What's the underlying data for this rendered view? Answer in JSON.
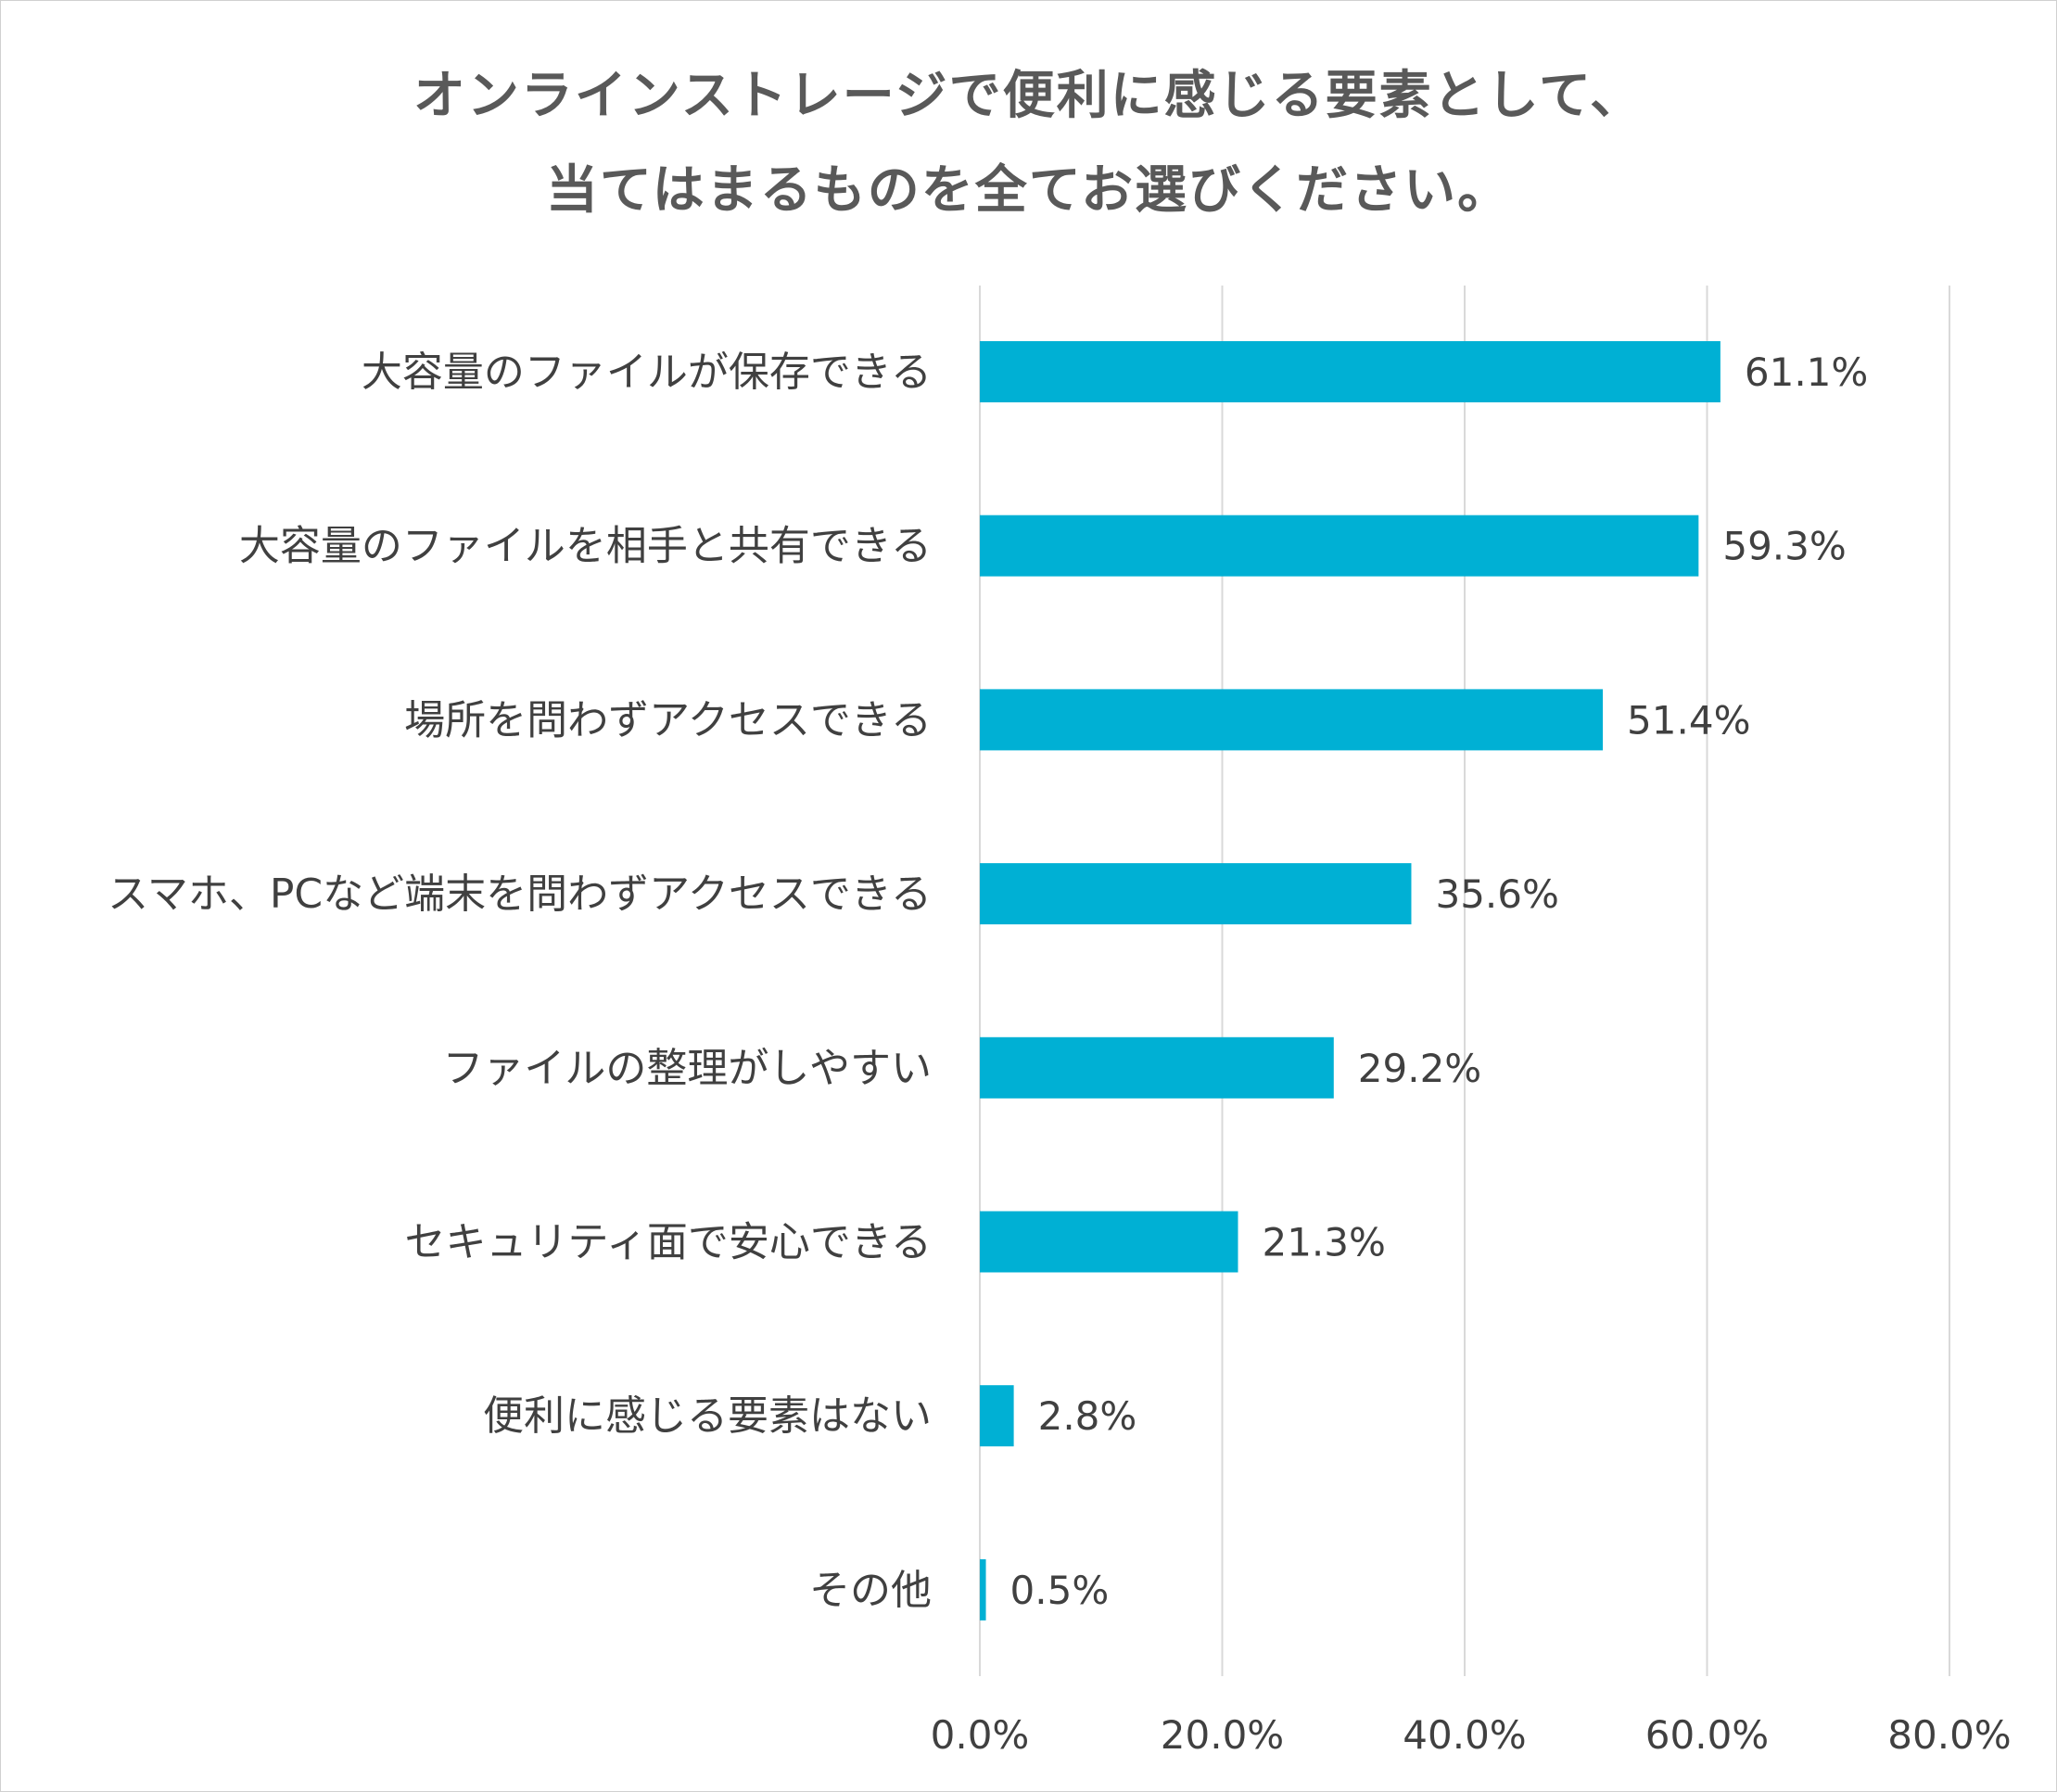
{
  "chart_data": {
    "type": "bar",
    "orientation": "horizontal",
    "title": "オンラインストレージで便利に感じる要素として、当てはまるものを全てお選びください。",
    "title_lines": [
      "オンラインストレージで便利に感じる要素として、",
      "当てはまるものを全てお選びください。"
    ],
    "categories": [
      "大容量のファイルが保存できる",
      "大容量のファイルを相手と共有できる",
      "場所を問わずアクセスできる",
      "スマホ、PCなど端末を問わずアクセスできる",
      "ファイルの整理がしやすい",
      "セキュリティ面で安心できる",
      "便利に感じる要素はない",
      "その他"
    ],
    "values": [
      61.1,
      59.3,
      51.4,
      35.6,
      29.2,
      21.3,
      2.8,
      0.5
    ],
    "value_labels": [
      "61.1%",
      "59.3%",
      "51.4%",
      "35.6%",
      "29.2%",
      "21.3%",
      "2.8%",
      "0.5%"
    ],
    "xlim": [
      0,
      80
    ],
    "x_ticks": [
      0,
      20,
      40,
      60,
      80
    ],
    "x_tick_labels": [
      "0.0%",
      "20.0%",
      "40.0%",
      "60.0%",
      "80.0%"
    ],
    "xlabel": "",
    "ylabel": "",
    "grid": true,
    "legend": "none",
    "bar_color": "#00b0d4",
    "grid_color": "#d9d9d9"
  }
}
